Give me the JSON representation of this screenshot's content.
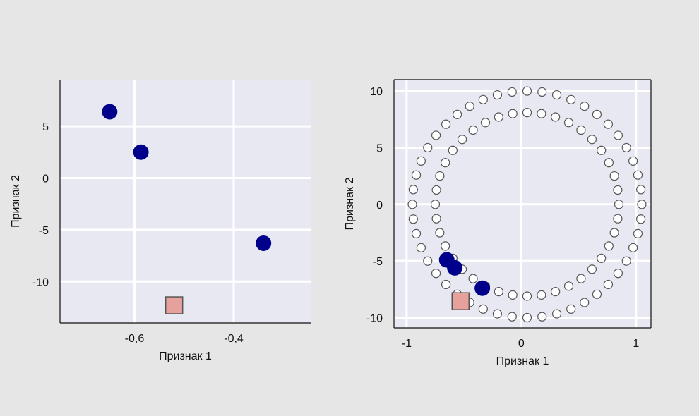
{
  "chart_data": [
    {
      "type": "scatter",
      "title": "",
      "xlabel": "Признак 1",
      "ylabel": "Признак 2",
      "xlim": [
        -0.75,
        -0.245
      ],
      "ylim": [
        -14.0,
        9.5
      ],
      "xticks": [
        -0.6,
        -0.4
      ],
      "xtick_labels": [
        "-0,6",
        "-0,4"
      ],
      "yticks": [
        5,
        0,
        -5,
        -10
      ],
      "ytick_labels": [
        "5",
        "0",
        "-5",
        "-10"
      ],
      "grid": true,
      "background": "#e8e8f2",
      "series": [
        {
          "marker": "circle",
          "color": "#00008b",
          "points": [
            [
              -0.65,
              6.4
            ],
            [
              -0.587,
              2.5
            ],
            [
              -0.34,
              -6.3
            ]
          ]
        },
        {
          "marker": "square",
          "color": "#e6a19c",
          "points": [
            [
              -0.52,
              -12.3
            ]
          ]
        }
      ]
    },
    {
      "type": "scatter",
      "title": "",
      "xlabel": "Признак 1",
      "ylabel": "Признак 2",
      "xlim": [
        -1.11,
        1.13
      ],
      "ylim": [
        -10.9,
        11.0
      ],
      "xticks": [
        -1,
        0,
        1
      ],
      "xtick_labels": [
        "-1",
        "0",
        "1"
      ],
      "yticks": [
        10,
        5,
        0,
        -5,
        -10
      ],
      "ytick_labels": [
        "10",
        "5",
        "0",
        "-5",
        "-10"
      ],
      "grid": true,
      "background": "#e8e8f2",
      "rings": [
        {
          "cx": 0.05,
          "cy": 0.0,
          "rx": 1.0,
          "ry": 10.0,
          "count": 48,
          "marker": "open-circle",
          "color": "#555555"
        },
        {
          "cx": 0.05,
          "cy": 0.0,
          "rx": 0.8,
          "ry": 8.1,
          "count": 40,
          "marker": "open-circle",
          "color": "#555555"
        }
      ],
      "series": [
        {
          "marker": "circle",
          "color": "#00008b",
          "points": [
            [
              -0.65,
              -4.9
            ],
            [
              -0.58,
              -5.6
            ],
            [
              -0.34,
              -7.4
            ]
          ]
        },
        {
          "marker": "square",
          "color": "#e6a19c",
          "points": [
            [
              -0.53,
              -8.55
            ]
          ]
        }
      ]
    }
  ]
}
